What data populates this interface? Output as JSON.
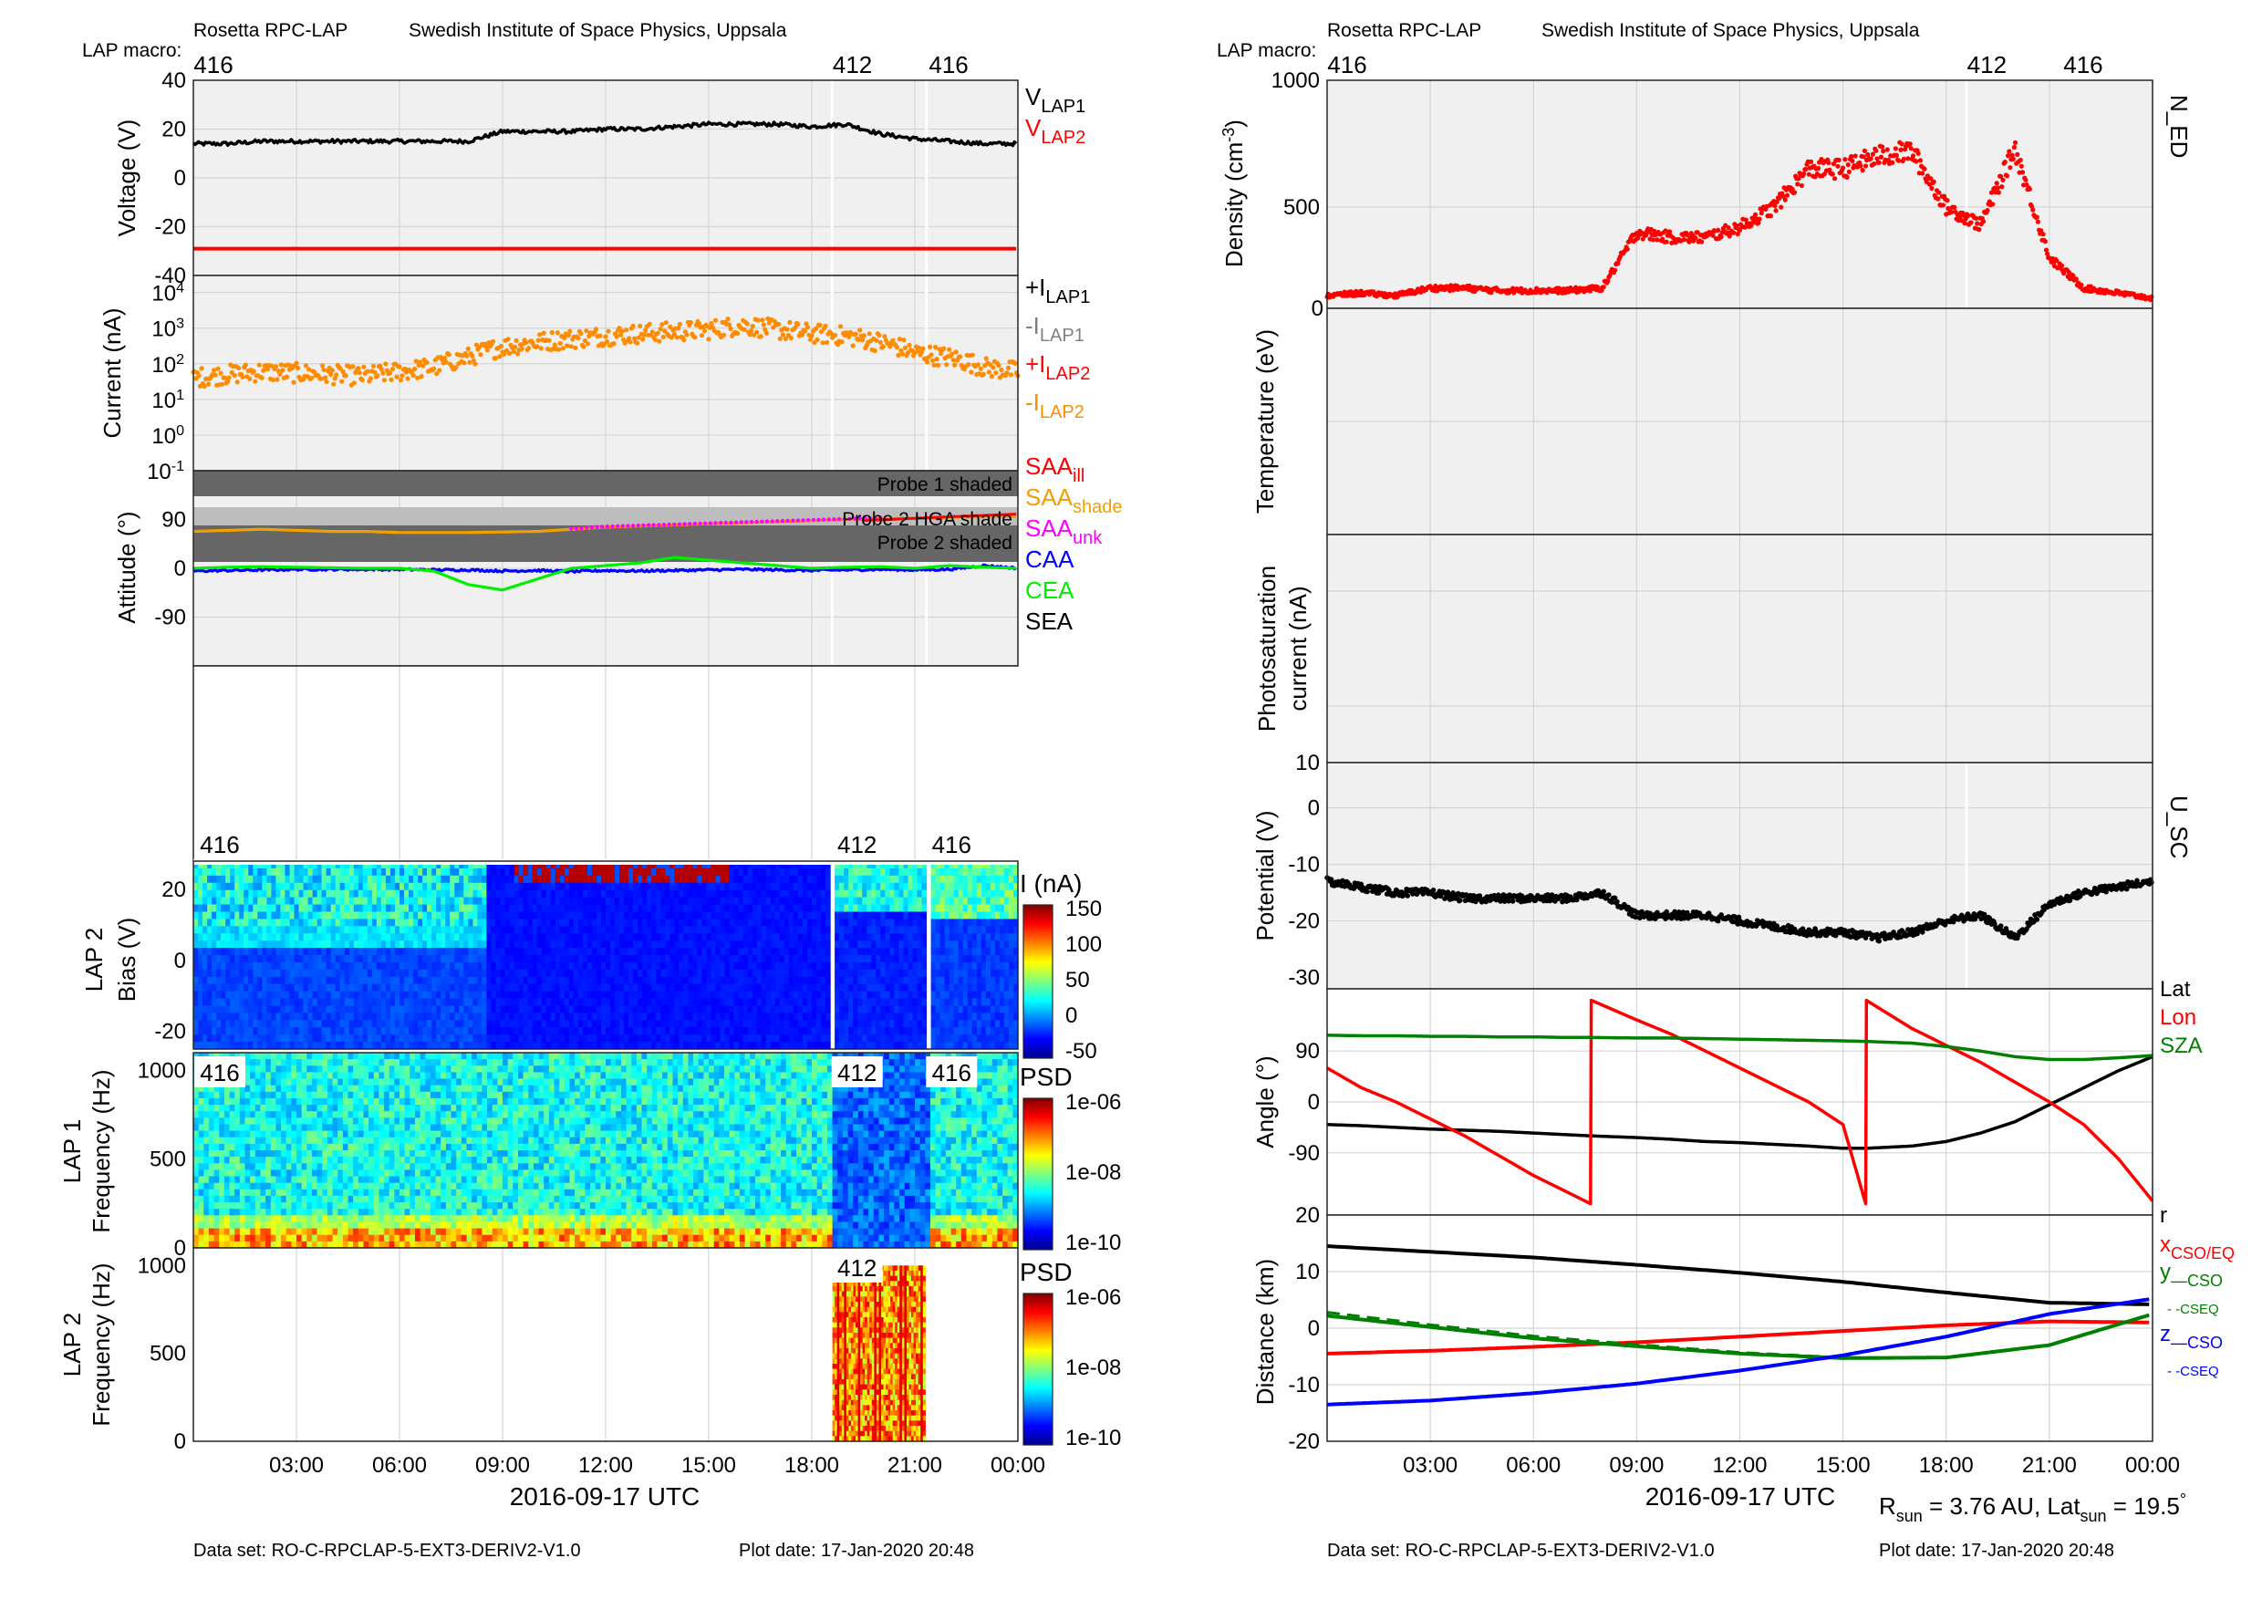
{
  "left": {
    "header_left": "Rosetta RPC-LAP",
    "header_right": "Swedish Institute of Space Physics, Uppsala",
    "macro_label": "LAP macro:",
    "macro_top": [
      {
        "label": "416",
        "t": 0.0
      },
      {
        "label": "412",
        "t": 18.6
      },
      {
        "label": "416",
        "t": 21.4
      }
    ],
    "xlabel": "2016-09-17 UTC",
    "xticks": [
      "03:00",
      "06:00",
      "09:00",
      "12:00",
      "15:00",
      "18:00",
      "21:00",
      "00:00"
    ],
    "footer_dataset": "Data set: RO-C-RPCLAP-5-EXT3-DERIV2-V1.0",
    "footer_date": "Plot date: 17-Jan-2020 20:48",
    "voltage": {
      "ylabel": "Voltage (V)",
      "yticks": [
        "40",
        "20",
        "0",
        "-20",
        "-40"
      ],
      "legend": [
        {
          "main": "V",
          "sub": "LAP1",
          "color": "#000000"
        },
        {
          "main": "V",
          "sub": "LAP2",
          "color": "#ff0000"
        }
      ]
    },
    "current": {
      "ylabel": "Current (nA)",
      "yticks": [
        {
          "base": "10",
          "exp": "4"
        },
        {
          "base": "10",
          "exp": "3"
        },
        {
          "base": "10",
          "exp": "2"
        },
        {
          "base": "10",
          "exp": "1"
        },
        {
          "base": "10",
          "exp": "0"
        },
        {
          "base": "10",
          "exp": "-1"
        }
      ],
      "legend": [
        {
          "main": "+I",
          "sub": "LAP1",
          "color": "#000000"
        },
        {
          "main": "-I",
          "sub": "LAP1",
          "color": "#808080"
        },
        {
          "main": "+I",
          "sub": "LAP2",
          "color": "#ff0000"
        },
        {
          "main": "-I",
          "sub": "LAP2",
          "color": "#ff8c00"
        }
      ]
    },
    "attitude": {
      "ylabel": "Attitude (°)",
      "yticks": [
        "90",
        "0",
        "-90"
      ],
      "bands": [
        "Probe 1 shaded",
        "Probe 2 HGA shade",
        "Probe 2 shaded"
      ],
      "legend": [
        {
          "main": "SAA",
          "sub": "ill",
          "color": "#ff0000"
        },
        {
          "main": "SAA",
          "sub": "shade",
          "color": "#f0a000"
        },
        {
          "main": "SAA",
          "sub": "unk",
          "color": "#ff00ff"
        },
        {
          "main": "CAA",
          "sub": "",
          "color": "#0000ff"
        },
        {
          "main": "CEA",
          "sub": "",
          "color": "#00ee00"
        },
        {
          "main": "SEA",
          "sub": "",
          "color": "#000000"
        }
      ]
    },
    "bias": {
      "ylabel1": "LAP 2",
      "ylabel2": "Bias (V)",
      "yticks": [
        "20",
        "0",
        "-20"
      ],
      "macro": [
        "416",
        "412",
        "416"
      ],
      "cbar_title": "I (nA)",
      "cbar_ticks": [
        "150",
        "100",
        "50",
        "0",
        "-50"
      ]
    },
    "psd1": {
      "ylabel1": "LAP 1",
      "ylabel2": "Frequency (Hz)",
      "yticks": [
        "1000",
        "500",
        "0"
      ],
      "macro": [
        "416",
        "412",
        "416"
      ],
      "cbar_title": "PSD",
      "cbar_ticks": [
        "1e-06",
        "1e-08",
        "1e-10"
      ]
    },
    "psd2": {
      "ylabel1": "LAP 2",
      "ylabel2": "Frequency (Hz)",
      "yticks": [
        "1000",
        "500",
        "0"
      ],
      "macro": [
        "412"
      ],
      "cbar_title": "PSD",
      "cbar_ticks": [
        "1e-06",
        "1e-08",
        "1e-10"
      ]
    }
  },
  "right": {
    "header_left": "Rosetta RPC-LAP",
    "header_right": "Swedish Institute of Space Physics, Uppsala",
    "macro_label": "LAP macro:",
    "macro_top": [
      {
        "label": "416",
        "t": 0.0
      },
      {
        "label": "412",
        "t": 18.6
      },
      {
        "label": "416",
        "t": 21.4
      }
    ],
    "xlabel": "2016-09-17 UTC",
    "xticks": [
      "03:00",
      "06:00",
      "09:00",
      "12:00",
      "15:00",
      "18:00",
      "21:00",
      "00:00"
    ],
    "footer_dataset": "Data set: RO-C-RPCLAP-5-EXT3-DERIV2-V1.0",
    "footer_date": "Plot date: 17-Jan-2020 20:48",
    "rsun": {
      "r_label": "R",
      "r_sub": "sun",
      "r_value": " = 3.76 AU, Lat",
      "lat_sub": "sun",
      "lat_value": " = 19.5",
      "deg": "°"
    },
    "density": {
      "ylabel_main": "Density (cm",
      "ylabel_exp": "-3",
      "ylabel_end": ")",
      "yticks": [
        "1000",
        "500"
      ],
      "legend": "N_ED"
    },
    "temperature": {
      "ylabel": "Temperature (eV)",
      "yticks": [
        "0"
      ]
    },
    "photo": {
      "ylabel1": "Photosaturation",
      "ylabel2": "current (nA)",
      "yticks": [
        "10"
      ]
    },
    "potential": {
      "ylabel": "Potential (V)",
      "yticks": [
        "0",
        "-10",
        "-20",
        "-30"
      ],
      "legend": "U_SC"
    },
    "angle": {
      "ylabel": "Angle (°)",
      "yticks": [
        "90",
        "0",
        "-90"
      ],
      "extra_tick": "20",
      "legend": [
        {
          "label": "Lat",
          "color": "#000000"
        },
        {
          "label": "Lon",
          "color": "#ff0000"
        },
        {
          "label": "SZA",
          "color": "#008000"
        }
      ]
    },
    "distance": {
      "ylabel": "Distance (km)",
      "yticks": [
        "10",
        "0",
        "-10",
        "-20"
      ],
      "legend": [
        {
          "main": "r",
          "sub": "",
          "color": "#000000"
        },
        {
          "main": "x",
          "sub": "CSO/EQ",
          "color": "#ff0000"
        },
        {
          "main": "y",
          "sub": "—CSO",
          "color": "#008000"
        },
        {
          "main": "",
          "sub": "- -CSEQ",
          "color": "#008000"
        },
        {
          "main": "z",
          "sub": "—CSO",
          "color": "#0000ff"
        },
        {
          "main": "",
          "sub": "- -CSEQ",
          "color": "#0000ff"
        }
      ]
    }
  },
  "chart_data": [
    {
      "type": "line",
      "title": "Voltage",
      "xlabel": "2016-09-17 UTC",
      "ylabel": "Voltage (V)",
      "ylim": [
        -40,
        40
      ],
      "x": [
        0,
        1,
        2,
        3,
        4,
        5,
        6,
        7,
        8,
        9,
        10,
        11,
        12,
        13,
        14,
        15,
        16,
        17,
        18,
        19,
        20,
        21,
        22,
        23,
        24
      ],
      "series": [
        {
          "name": "V_LAP1",
          "color": "#000000",
          "values": [
            14,
            14,
            15,
            15,
            15,
            15,
            15,
            15,
            15,
            19,
            19,
            19,
            20,
            20,
            21,
            22,
            22,
            22,
            21,
            22,
            18,
            16,
            15,
            14,
            14
          ]
        },
        {
          "name": "V_LAP2",
          "color": "#ff0000",
          "values": [
            -29,
            -29,
            -29,
            -29,
            -29,
            -29,
            -29,
            -29,
            -29,
            -29,
            -29,
            -29,
            -29,
            -29,
            -29,
            -29,
            -29,
            -29,
            -29,
            -29,
            -29,
            -29,
            -29,
            -29,
            -29
          ]
        }
      ]
    },
    {
      "type": "scatter",
      "title": "Current",
      "ylabel": "Current (nA)",
      "ylim": [
        0.1,
        30000
      ],
      "scale": "log",
      "x": [
        0,
        1,
        2,
        3,
        4,
        5,
        6,
        7,
        8,
        9,
        10,
        11,
        12,
        13,
        14,
        15,
        16,
        17,
        18,
        19,
        20,
        21,
        22,
        23,
        24
      ],
      "series": [
        {
          "name": "-I_LAP2",
          "color": "#ff8c00",
          "values": [
            40,
            50,
            60,
            55,
            50,
            45,
            60,
            80,
            150,
            300,
            400,
            500,
            600,
            700,
            800,
            900,
            1200,
            900,
            700,
            600,
            400,
            200,
            150,
            80,
            60
          ]
        }
      ]
    },
    {
      "type": "line",
      "title": "Attitude",
      "ylabel": "Attitude (°)",
      "ylim": [
        -180,
        180
      ],
      "x": [
        0,
        1,
        2,
        3,
        4,
        5,
        6,
        7,
        8,
        9,
        10,
        11,
        12,
        13,
        14,
        15,
        16,
        17,
        18,
        19,
        20,
        21,
        22,
        23,
        24
      ],
      "series": [
        {
          "name": "SAA_shade",
          "color": "#f0a000",
          "values": [
            68,
            70,
            72,
            70,
            68,
            68,
            66,
            66,
            66,
            67,
            68,
            72,
            76,
            78,
            80,
            82,
            84,
            86,
            88,
            90,
            92,
            92,
            94,
            95,
            96
          ]
        },
        {
          "name": "CAA",
          "color": "#0000ff",
          "values": [
            -5,
            -4,
            -3,
            -2,
            -2,
            -2,
            -2,
            -3,
            -3,
            -5,
            -4,
            -6,
            -4,
            -5,
            -4,
            -3,
            -2,
            -3,
            -4,
            -3,
            -2,
            -3,
            -2,
            5,
            0
          ]
        },
        {
          "name": "CEA",
          "color": "#00ee00",
          "values": [
            0,
            2,
            3,
            2,
            1,
            0,
            0,
            -5,
            -30,
            -40,
            -20,
            0,
            5,
            10,
            20,
            15,
            10,
            5,
            0,
            2,
            3,
            0,
            5,
            2,
            0
          ]
        }
      ]
    },
    {
      "type": "heatmap",
      "title": "LAP 2 Bias (V)",
      "ylabel": "Bias (V)",
      "ylim": [
        -25,
        28
      ],
      "colorbar": "I (nA)",
      "clim": [
        -50,
        150
      ]
    },
    {
      "type": "heatmap",
      "title": "LAP 1 Frequency (Hz)",
      "ylabel": "Frequency (Hz)",
      "ylim": [
        0,
        1100
      ],
      "colorbar": "PSD",
      "clim": [
        "1e-10",
        "1e-06"
      ]
    },
    {
      "type": "heatmap",
      "title": "LAP 2 Frequency (Hz)",
      "ylabel": "Frequency (Hz)",
      "ylim": [
        0,
        1100
      ],
      "colorbar": "PSD",
      "clim": [
        "1e-10",
        "1e-06"
      ]
    },
    {
      "type": "scatter",
      "title": "Density",
      "ylabel": "Density (cm-3)",
      "ylim": [
        100,
        1000
      ],
      "x": [
        0,
        1,
        2,
        3,
        4,
        5,
        6,
        7,
        8,
        9,
        10,
        11,
        12,
        13,
        14,
        15,
        16,
        17,
        18,
        19,
        20,
        21,
        22,
        23,
        24
      ],
      "series": [
        {
          "name": "N_ED",
          "color": "#ff0000",
          "values": [
            150,
            160,
            150,
            180,
            180,
            170,
            170,
            170,
            180,
            400,
            380,
            380,
            420,
            500,
            650,
            650,
            700,
            720,
            500,
            430,
            730,
            300,
            180,
            160,
            140
          ]
        }
      ]
    },
    {
      "type": "scatter",
      "title": "Potential",
      "ylabel": "Potential (V)",
      "ylim": [
        -32,
        8
      ],
      "x": [
        0,
        1,
        2,
        3,
        4,
        5,
        6,
        7,
        8,
        9,
        10,
        11,
        12,
        13,
        14,
        15,
        16,
        17,
        18,
        19,
        20,
        21,
        22,
        23,
        24
      ],
      "series": [
        {
          "name": "U_SC",
          "color": "#000000",
          "values": [
            -13,
            -14,
            -15,
            -15,
            -16,
            -16,
            -16,
            -16,
            -15,
            -19,
            -19,
            -19,
            -20,
            -21,
            -22,
            -22,
            -23,
            -22,
            -20,
            -19,
            -23,
            -17,
            -15,
            -14,
            -13
          ]
        }
      ]
    },
    {
      "type": "line",
      "title": "Angle",
      "ylabel": "Angle (°)",
      "ylim": [
        -200,
        200
      ],
      "x": [
        0,
        1,
        2,
        3,
        4,
        5,
        6,
        7,
        7.66,
        7.67,
        9,
        10,
        11,
        12,
        13,
        14,
        15,
        15.66,
        15.67,
        17,
        18,
        19,
        20,
        21,
        22,
        23,
        24
      ],
      "series": [
        {
          "name": "Lat",
          "color": "#000000",
          "values": [
            -40,
            -42,
            -45,
            -48,
            -50,
            -52,
            -55,
            -58,
            -60,
            -60,
            -63,
            -66,
            -70,
            -72,
            -75,
            -78,
            -82,
            -82,
            -82,
            -78,
            -70,
            -55,
            -35,
            -5,
            25,
            55,
            80
          ]
        },
        {
          "name": "Lon",
          "color": "#ff0000",
          "values": [
            60,
            25,
            0,
            -30,
            -60,
            -95,
            -130,
            -160,
            -180,
            180,
            145,
            120,
            90,
            60,
            30,
            0,
            -40,
            -180,
            180,
            130,
            100,
            70,
            35,
            0,
            -40,
            -100,
            -175
          ]
        },
        {
          "name": "SZA",
          "color": "#008000",
          "values": [
            118,
            117,
            117,
            116,
            116,
            115,
            115,
            114,
            114,
            114,
            113,
            113,
            112,
            111,
            110,
            109,
            108,
            107,
            107,
            104,
            98,
            90,
            80,
            75,
            75,
            78,
            82
          ]
        }
      ]
    },
    {
      "type": "line",
      "title": "Distance",
      "ylabel": "Distance (km)",
      "ylim": [
        -20,
        20
      ],
      "x": [
        0,
        3,
        6,
        9,
        12,
        15,
        18,
        21,
        24
      ],
      "series": [
        {
          "name": "r",
          "color": "#000000",
          "values": [
            14.5,
            13.5,
            12.5,
            11.2,
            9.8,
            8.2,
            6.3,
            4.5,
            4.2
          ]
        },
        {
          "name": "x_CSO/EQ",
          "color": "#ff0000",
          "values": [
            -4.5,
            -4.0,
            -3.3,
            -2.5,
            -1.5,
            -0.5,
            0.5,
            1.2,
            1.0
          ]
        },
        {
          "name": "y_CSO",
          "color": "#008000",
          "values": [
            2.2,
            0.2,
            -1.8,
            -3.2,
            -4.5,
            -5.3,
            -5.2,
            -3.0,
            2.5
          ]
        },
        {
          "name": "y_CSEQ",
          "color": "#008000",
          "values": [
            2.8,
            0.6,
            -1.4,
            -2.9,
            -4.3,
            -5.2,
            -5.2,
            -3.0,
            2.5
          ]
        },
        {
          "name": "z_CSO",
          "color": "#0000ff",
          "values": [
            -13.5,
            -12.8,
            -11.5,
            -9.8,
            -7.5,
            -4.8,
            -1.5,
            2.5,
            5.2
          ]
        },
        {
          "name": "z_CSEQ",
          "color": "#0000ff",
          "values": [
            -13.5,
            -12.8,
            -11.5,
            -9.8,
            -7.5,
            -4.8,
            -1.5,
            2.5,
            5.2
          ]
        }
      ]
    }
  ]
}
